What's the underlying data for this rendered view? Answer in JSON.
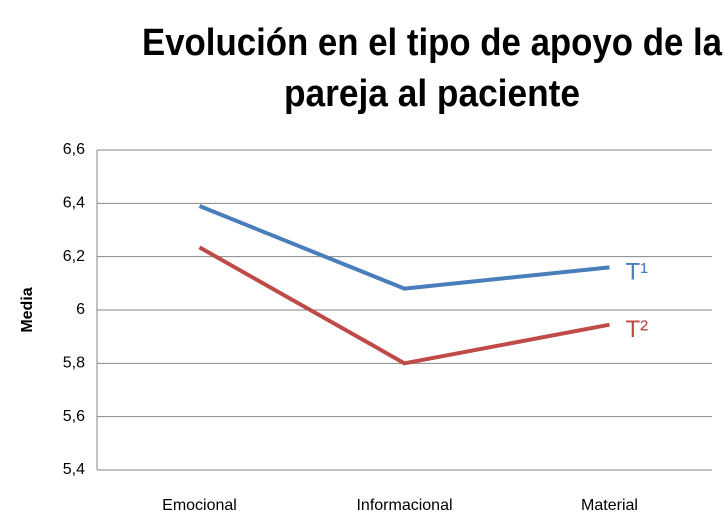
{
  "chart_data": {
    "type": "line",
    "title": [
      "Evolución en el tipo de apoyo de la",
      "pareja al paciente"
    ],
    "ylabel": "Media",
    "categories": [
      "Emocional",
      "Informacional",
      "Material"
    ],
    "series": [
      {
        "name": "T¹",
        "color": "#4a7ebb",
        "values": [
          6.39,
          6.08,
          6.16
        ]
      },
      {
        "name": "T²",
        "color": "#be4b48",
        "values": [
          6.235,
          5.8,
          5.945
        ]
      }
    ],
    "ylim": [
      5.4,
      6.6
    ],
    "yticks": [
      {
        "value": 5.4,
        "label": "5,4"
      },
      {
        "value": 5.6,
        "label": "5,6"
      },
      {
        "value": 5.8,
        "label": "5,8"
      },
      6,
      {
        "value": 6.2,
        "label": "6,2"
      },
      {
        "value": 6.4,
        "label": "6,4"
      },
      {
        "value": 6.6,
        "label": "6,6"
      }
    ],
    "grid": true
  }
}
